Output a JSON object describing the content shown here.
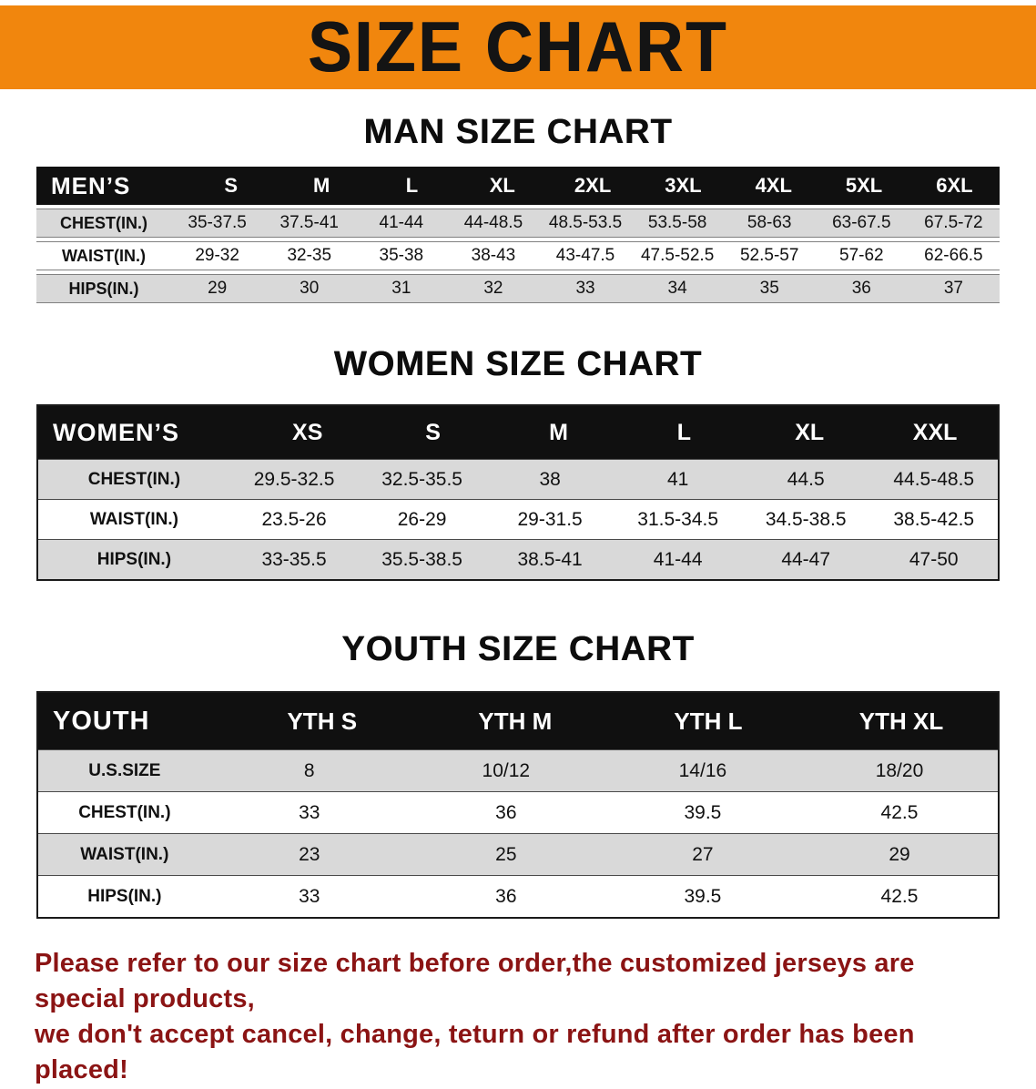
{
  "banner": {
    "title": "SIZE CHART"
  },
  "colors": {
    "banner_bg": "#F1860D",
    "table_header_bg": "#101010",
    "row_gray": "#D9D9D9",
    "footer_text": "#8B1414"
  },
  "sections": [
    {
      "title": "MAN SIZE CHART",
      "header": [
        "MEN’S",
        "S",
        "M",
        "L",
        "XL",
        "2XL",
        "3XL",
        "4XL",
        "5XL",
        "6XL"
      ],
      "rows": [
        [
          "CHEST(IN.)",
          "35-37.5",
          "37.5-41",
          "41-44",
          "44-48.5",
          "48.5-53.5",
          "53.5-58",
          "58-63",
          "63-67.5",
          "67.5-72"
        ],
        [
          "WAIST(IN.)",
          "29-32",
          "32-35",
          "35-38",
          "38-43",
          "43-47.5",
          "47.5-52.5",
          "52.5-57",
          "57-62",
          "62-66.5"
        ],
        [
          "HIPS(IN.)",
          "29",
          "30",
          "31",
          "32",
          "33",
          "34",
          "35",
          "36",
          "37"
        ]
      ]
    },
    {
      "title": "WOMEN SIZE CHART",
      "header": [
        "WOMEN’S",
        "XS",
        "S",
        "M",
        "L",
        "XL",
        "XXL"
      ],
      "rows": [
        [
          "CHEST(IN.)",
          "29.5-32.5",
          "32.5-35.5",
          "38",
          "41",
          "44.5",
          "44.5-48.5"
        ],
        [
          "WAIST(IN.)",
          "23.5-26",
          "26-29",
          "29-31.5",
          "31.5-34.5",
          "34.5-38.5",
          "38.5-42.5"
        ],
        [
          "HIPS(IN.)",
          "33-35.5",
          "35.5-38.5",
          "38.5-41",
          "41-44",
          "44-47",
          "47-50"
        ]
      ]
    },
    {
      "title": "YOUTH SIZE CHART",
      "header": [
        "YOUTH",
        "YTH S",
        "YTH M",
        "YTH L",
        "YTH XL"
      ],
      "rows": [
        [
          "U.S.SIZE",
          "8",
          "10/12",
          "14/16",
          "18/20"
        ],
        [
          "CHEST(IN.)",
          "33",
          "36",
          "39.5",
          "42.5"
        ],
        [
          "WAIST(IN.)",
          "23",
          "25",
          "27",
          "29"
        ],
        [
          "HIPS(IN.)",
          "33",
          "36",
          "39.5",
          "42.5"
        ]
      ]
    }
  ],
  "footer": {
    "lines": [
      "Please refer to our size chart before order,the customized jerseys are special products,",
      "we don't accept cancel, change, teturn or refund after order has been placed!"
    ]
  }
}
